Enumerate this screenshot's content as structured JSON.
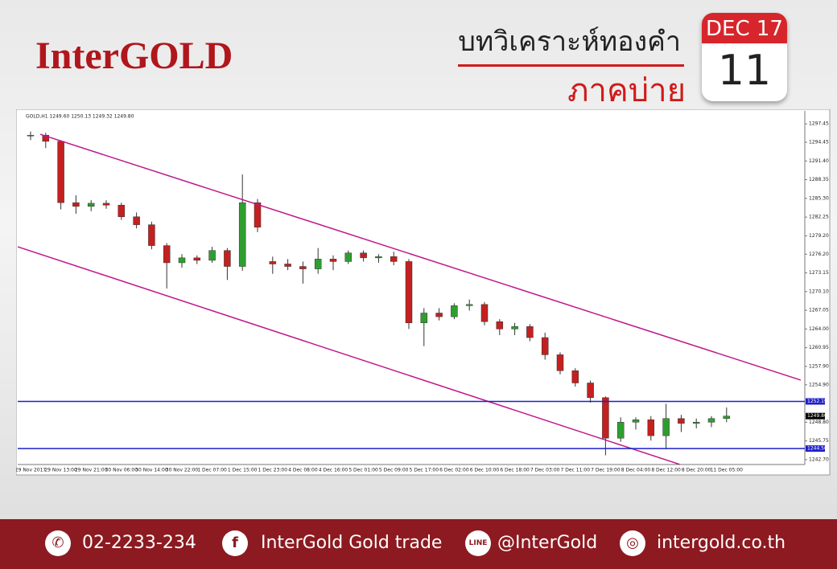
{
  "header": {
    "logo": "InterGOLD",
    "title": "บทวิเคราะห์ทองคำ",
    "subtitle": "ภาคบ่าย",
    "calendar": {
      "month": "DEC 17",
      "day": "11"
    }
  },
  "chart_data": {
    "type": "candlestick",
    "title": "GOLD,H1 1249.60 1250.13 1249.32 1249.80",
    "categories": [
      "29 Nov 2017",
      null,
      "29 Nov 13:00",
      null,
      "29 Nov 21:00",
      null,
      "30 Nov 06:00",
      null,
      "30 Nov 14:00",
      null,
      "30 Nov 22:00",
      null,
      "1 Dec 07:00",
      null,
      "1 Dec 15:00",
      null,
      "1 Dec 23:00",
      null,
      "4 Dec 08:00",
      null,
      "4 Dec 16:00",
      null,
      "5 Dec 01:00",
      null,
      "5 Dec 09:00",
      null,
      "5 Dec 17:00",
      null,
      "6 Dec 02:00",
      null,
      "6 Dec 10:00",
      null,
      "6 Dec 18:00",
      null,
      "7 Dec 03:00",
      null,
      "7 Dec 11:00",
      null,
      "7 Dec 19:00",
      null,
      "8 Dec 04:00",
      null,
      "8 Dec 12:00",
      null,
      "8 Dec 20:00",
      null,
      "11 Dec 05:00"
    ],
    "open": [
      1295.5,
      1295.6,
      1294.6,
      1284.6,
      1284.0,
      1284.5,
      1284.2,
      1282.3,
      1281.0,
      1277.6,
      1274.8,
      1275.6,
      1275.2,
      1276.8,
      1274.2,
      1284.6,
      1275.0,
      1274.6,
      1274.2,
      1273.8,
      1275.4,
      1275.0,
      1276.4,
      1275.6,
      1275.8,
      1275.0,
      1265.0,
      1266.6,
      1266.0,
      1267.8,
      1268.0,
      1265.2,
      1264.0,
      1264.4,
      1262.6,
      1259.8,
      1257.2,
      1255.2,
      1252.8,
      1246.2,
      1248.8,
      1249.2,
      1246.6,
      1249.4,
      1248.6,
      1248.8,
      1249.4
    ],
    "high": [
      1296.2,
      1296.0,
      1294.8,
      1285.8,
      1285.0,
      1285.0,
      1284.6,
      1283.0,
      1281.5,
      1278.0,
      1276.2,
      1276.0,
      1277.4,
      1277.2,
      1289.2,
      1285.2,
      1275.8,
      1275.4,
      1275.0,
      1277.2,
      1276.0,
      1276.8,
      1276.8,
      1276.2,
      1276.6,
      1275.4,
      1267.4,
      1267.4,
      1268.2,
      1268.8,
      1268.4,
      1265.6,
      1265.0,
      1264.8,
      1263.4,
      1260.2,
      1257.6,
      1255.6,
      1253.0,
      1249.6,
      1249.6,
      1249.8,
      1251.8,
      1250.0,
      1249.4,
      1249.8,
      1251.2
    ],
    "low": [
      1294.8,
      1293.5,
      1283.5,
      1282.8,
      1283.2,
      1283.6,
      1281.8,
      1280.4,
      1277.0,
      1270.6,
      1274.0,
      1274.6,
      1274.8,
      1272.0,
      1273.5,
      1279.8,
      1273.0,
      1273.6,
      1271.4,
      1273.0,
      1273.6,
      1274.6,
      1275.0,
      1274.8,
      1274.4,
      1264.0,
      1261.2,
      1265.4,
      1265.6,
      1267.0,
      1264.6,
      1263.0,
      1263.0,
      1262.0,
      1259.0,
      1256.6,
      1254.6,
      1252.0,
      1243.4,
      1245.6,
      1247.6,
      1245.8,
      1244.4,
      1247.2,
      1247.8,
      1248.0,
      1248.8
    ],
    "close": [
      1295.6,
      1294.6,
      1284.6,
      1284.0,
      1284.5,
      1284.2,
      1282.3,
      1281.0,
      1277.6,
      1274.8,
      1275.6,
      1275.2,
      1276.8,
      1274.2,
      1284.6,
      1280.6,
      1274.6,
      1274.2,
      1273.8,
      1275.4,
      1275.0,
      1276.4,
      1275.6,
      1275.8,
      1275.0,
      1265.0,
      1266.6,
      1266.0,
      1267.8,
      1268.0,
      1265.2,
      1264.0,
      1264.4,
      1262.6,
      1259.8,
      1257.2,
      1255.2,
      1252.8,
      1246.2,
      1248.8,
      1249.2,
      1246.6,
      1249.4,
      1248.6,
      1248.8,
      1249.4,
      1249.8
    ],
    "up_color": "#2f9e2f",
    "down_color": "#c42020",
    "ylim": [
      1241.9,
      1299.3
    ],
    "yticks": [
      {
        "value": 1297.45,
        "label": "1297.45"
      },
      {
        "value": 1294.45,
        "label": "1294.45"
      },
      {
        "value": 1291.4,
        "label": "1291.40"
      },
      {
        "value": 1288.35,
        "label": "1288.35"
      },
      {
        "value": 1285.3,
        "label": "1285.30"
      },
      {
        "value": 1282.25,
        "label": "1282.25"
      },
      {
        "value": 1279.2,
        "label": "1279.20"
      },
      {
        "value": 1276.2,
        "label": "1276.20"
      },
      {
        "value": 1273.15,
        "label": "1273.15"
      },
      {
        "value": 1270.1,
        "label": "1270.10"
      },
      {
        "value": 1267.05,
        "label": "1267.05"
      },
      {
        "value": 1264.0,
        "label": "1264.00"
      },
      {
        "value": 1260.95,
        "label": "1260.95"
      },
      {
        "value": 1257.9,
        "label": "1257.90"
      },
      {
        "value": 1254.9,
        "label": "1254.90"
      },
      {
        "value": 1248.8,
        "label": "1248.80"
      },
      {
        "value": 1245.75,
        "label": "1245.75"
      },
      {
        "value": 1242.7,
        "label": "1242.70"
      }
    ],
    "hlines": [
      {
        "value": 1252.19,
        "label": "1252.19",
        "color": "#1f1fc8"
      },
      {
        "value": 1244.5,
        "label": "1244.50",
        "color": "#1f1fc8"
      }
    ],
    "last_price": {
      "value": 1249.8,
      "label": "1249.80"
    },
    "trendlines": [
      {
        "x": [
          0.64,
          50.9
        ],
        "y": [
          1295.75,
          1255.67
        ],
        "color": "#c0168c"
      },
      {
        "x": [
          -0.85,
          42.9
        ],
        "y": [
          1277.41,
          1241.92
        ],
        "color": "#c0168c"
      }
    ]
  },
  "footer": {
    "phone": "02-2233-234",
    "facebook": "InterGold Gold trade",
    "line": "@InterGold",
    "website": "intergold.co.th"
  }
}
